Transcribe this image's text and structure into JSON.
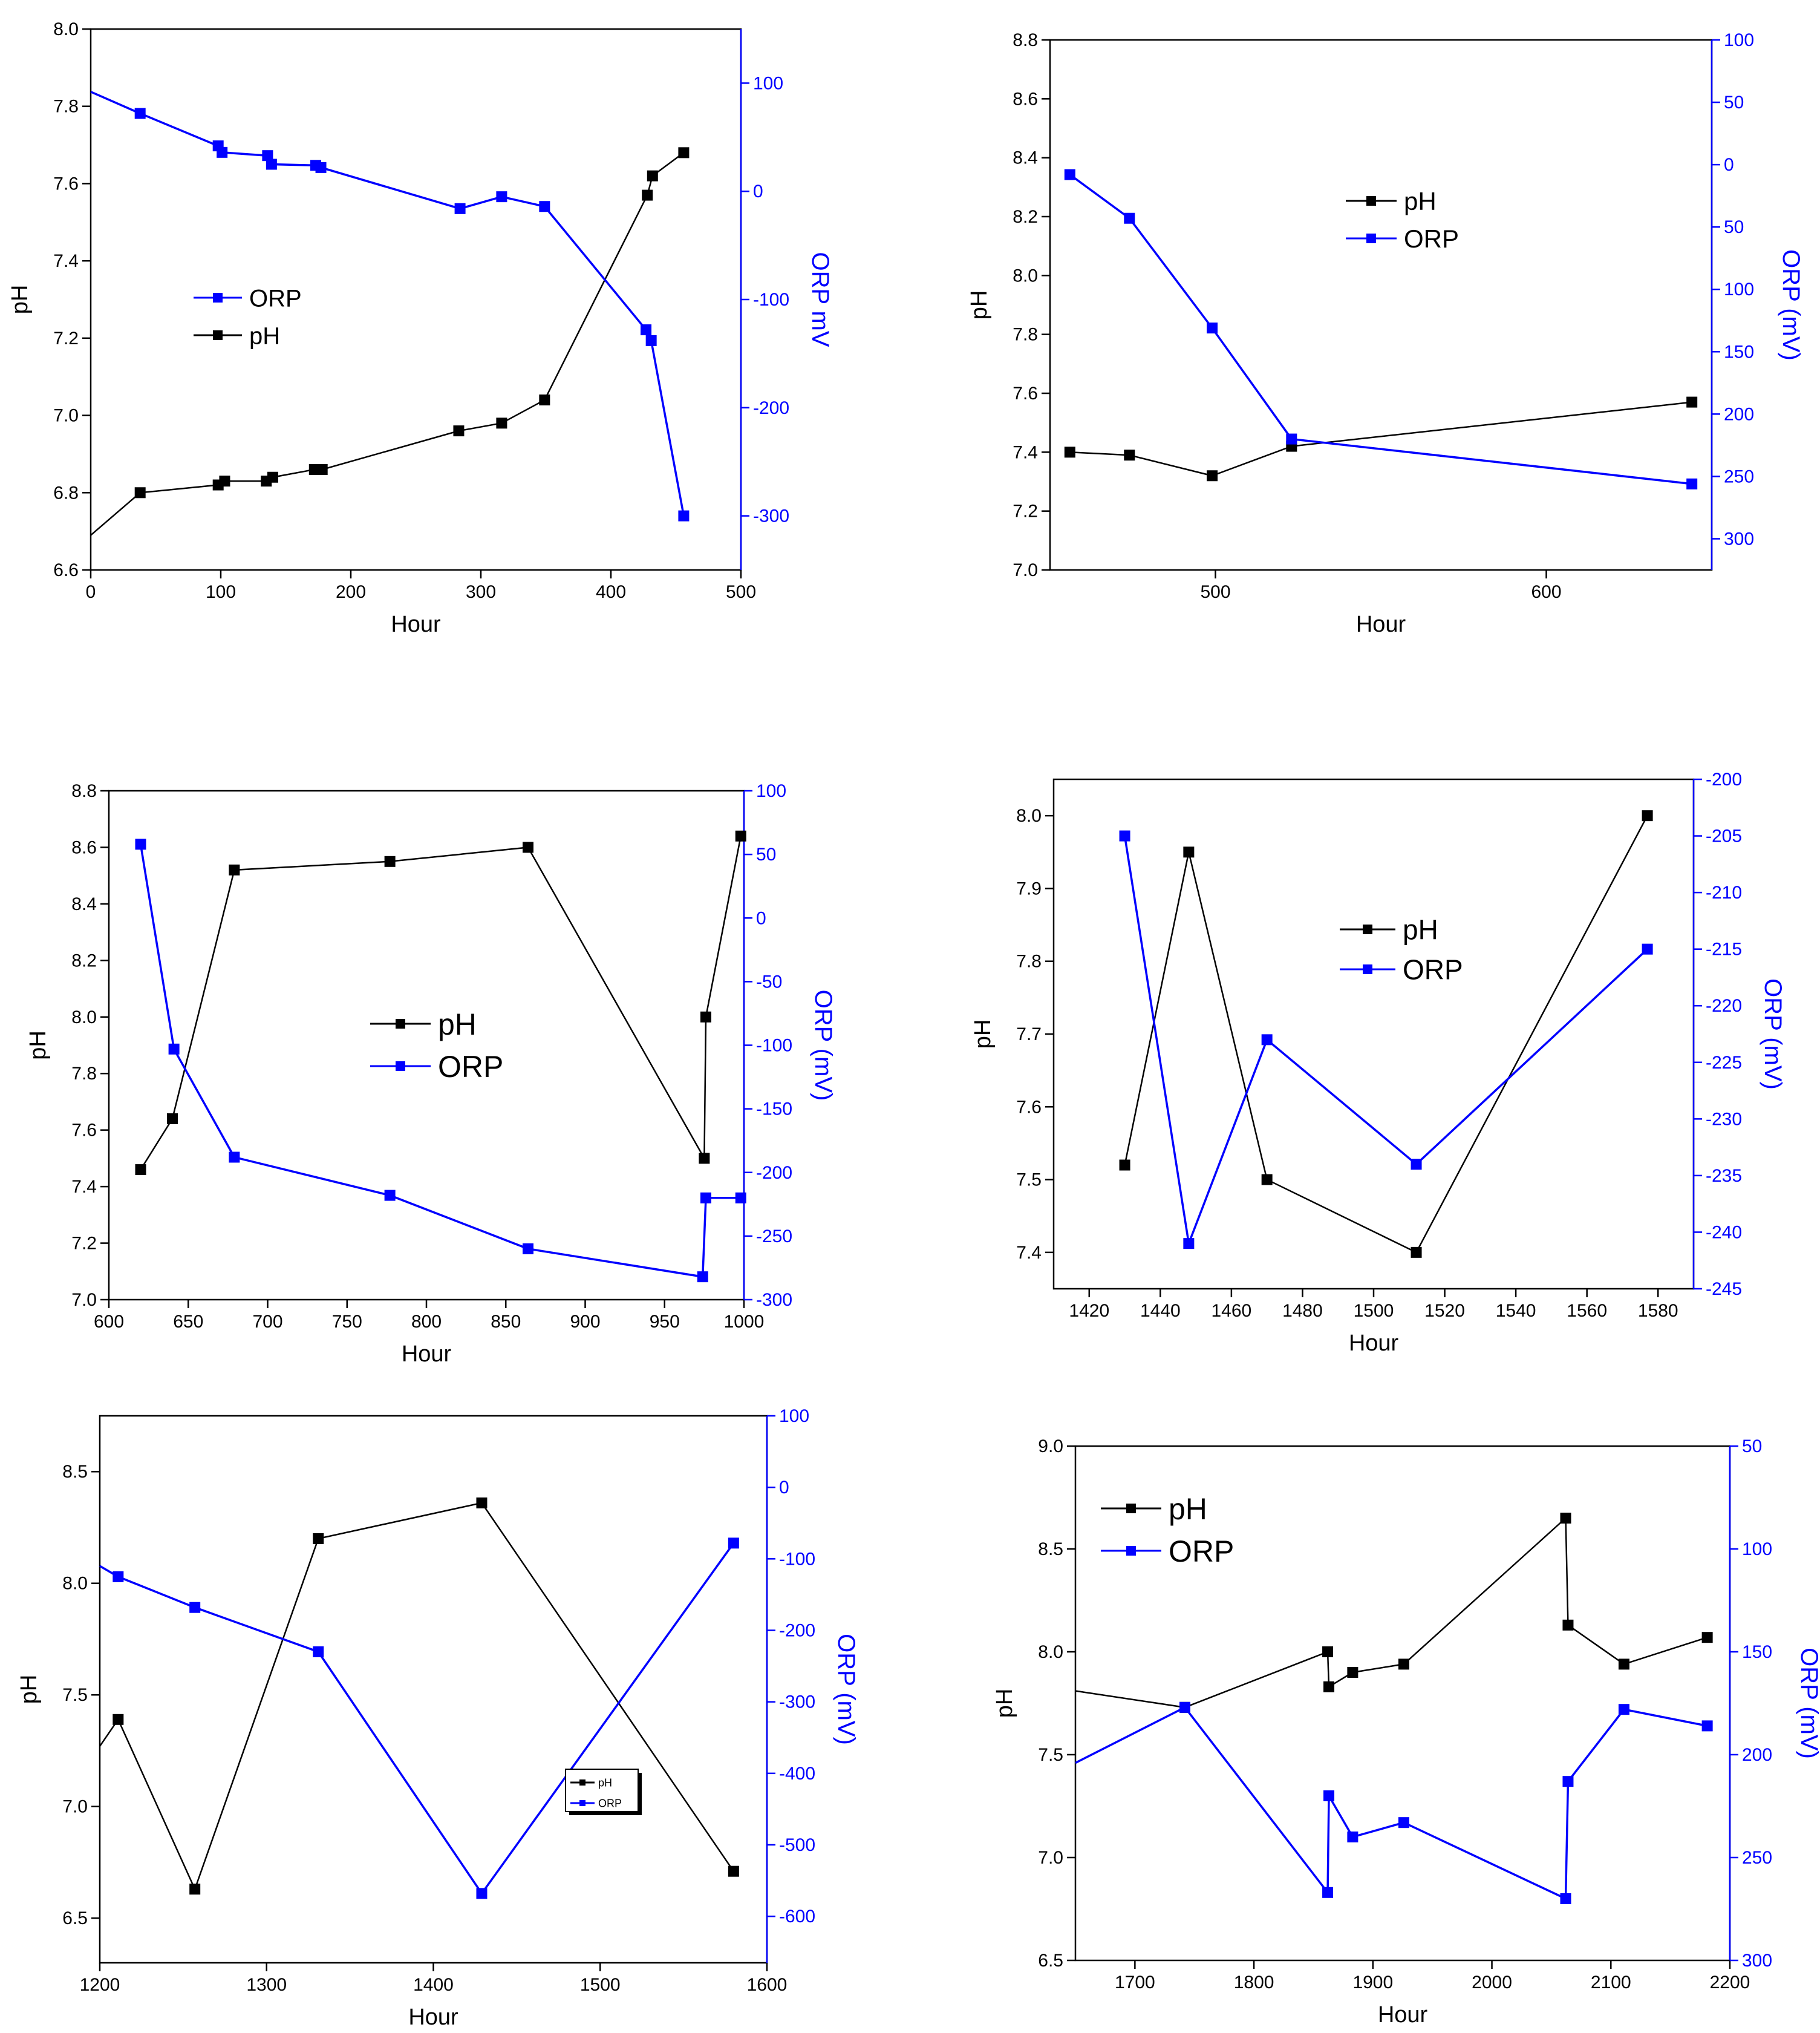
{
  "colors": {
    "primary": "#000000",
    "secondary": "#0000ff"
  },
  "chart_data": [
    {
      "type": "line",
      "xlabel": "Hour",
      "ylabel": "pH",
      "y2label": "ORP mV",
      "xlim": [
        0,
        500
      ],
      "ylim": [
        6.6,
        8.0
      ],
      "y2lim": [
        -350,
        150
      ],
      "xticks": [
        0,
        100,
        200,
        300,
        400,
        500
      ],
      "yticks": [
        6.6,
        6.8,
        7.0,
        7.2,
        7.4,
        7.6,
        7.8,
        8.0
      ],
      "y2ticks": [
        -300,
        -200,
        -100,
        0,
        100
      ],
      "legend": [
        "ORP",
        "pH"
      ],
      "series": [
        {
          "name": "pH",
          "axis": "left",
          "color": "#000000",
          "x": [
            0,
            38,
            98,
            103,
            135,
            140,
            172,
            178,
            283,
            316,
            349,
            428,
            432,
            456
          ],
          "y": [
            6.69,
            6.8,
            6.82,
            6.83,
            6.83,
            6.84,
            6.86,
            6.86,
            6.96,
            6.98,
            7.04,
            7.57,
            7.62,
            7.68
          ]
        },
        {
          "name": "ORP",
          "axis": "right",
          "color": "#0000ff",
          "x": [
            0,
            38,
            98,
            101,
            136,
            139,
            173,
            177,
            284,
            316,
            349,
            427,
            431,
            456
          ],
          "y": [
            92,
            72,
            42,
            36,
            33,
            25,
            24,
            22,
            -16,
            -5,
            -14,
            -128,
            -138,
            -300
          ]
        }
      ]
    },
    {
      "type": "line",
      "xlabel": "Hour",
      "ylabel": "pH",
      "y2label": "ORP (mV)",
      "xlim": [
        450,
        650
      ],
      "ylim": [
        7.0,
        8.8
      ],
      "y2lim": [
        -325,
        100
      ],
      "xticks": [
        500,
        600
      ],
      "yticks": [
        7.0,
        7.2,
        7.4,
        7.6,
        7.8,
        8.0,
        8.2,
        8.4,
        8.6,
        8.8
      ],
      "y2ticks": [
        -300,
        -250,
        -200,
        -150,
        -100,
        -50,
        0,
        50,
        100
      ],
      "y2ticklabels": [
        "300",
        "250",
        "200",
        "150",
        "100",
        "50",
        "0",
        "50",
        "100"
      ],
      "legend": [
        "pH",
        "ORP"
      ],
      "series": [
        {
          "name": "pH",
          "axis": "left",
          "color": "#000000",
          "x": [
            456,
            474,
            499,
            523,
            644
          ],
          "y": [
            7.4,
            7.39,
            7.32,
            7.42,
            7.57
          ]
        },
        {
          "name": "ORP",
          "axis": "right",
          "color": "#0000ff",
          "x": [
            456,
            474,
            499,
            523,
            644
          ],
          "y": [
            -8,
            -43,
            -131,
            -220,
            -256
          ]
        }
      ]
    },
    {
      "type": "line",
      "xlabel": "Hour",
      "ylabel": "pH",
      "y2label": "ORP (mV)",
      "xlim": [
        600,
        1000
      ],
      "ylim": [
        7.0,
        8.8
      ],
      "y2lim": [
        -300,
        100
      ],
      "xticks": [
        600,
        650,
        700,
        750,
        800,
        850,
        900,
        950,
        1000
      ],
      "yticks": [
        7.0,
        7.2,
        7.4,
        7.6,
        7.8,
        8.0,
        8.2,
        8.4,
        8.6,
        8.8
      ],
      "y2ticks": [
        -300,
        -250,
        -200,
        -150,
        -100,
        -50,
        0,
        50,
        100
      ],
      "legend": [
        "pH",
        "ORP"
      ],
      "series": [
        {
          "name": "pH",
          "axis": "left",
          "color": "#000000",
          "x": [
            620,
            640,
            679,
            777,
            864,
            975,
            976,
            998
          ],
          "y": [
            7.46,
            7.64,
            8.52,
            8.55,
            8.6,
            7.5,
            8.0,
            8.64
          ]
        },
        {
          "name": "ORP",
          "axis": "right",
          "color": "#0000ff",
          "x": [
            620,
            641,
            679,
            777,
            864,
            974,
            976,
            998
          ],
          "y": [
            58,
            -103,
            -188,
            -218,
            -260,
            -282,
            -220,
            -220
          ]
        }
      ]
    },
    {
      "type": "line",
      "xlabel": "Hour",
      "ylabel": "pH",
      "y2label": "ORP (mV)",
      "xlim": [
        1410,
        1590
      ],
      "ylim": [
        7.35,
        8.05
      ],
      "y2lim": [
        -245,
        -200
      ],
      "xticks": [
        1420,
        1440,
        1460,
        1480,
        1500,
        1520,
        1540,
        1560,
        1580
      ],
      "yticks": [
        7.4,
        7.5,
        7.6,
        7.7,
        7.8,
        7.9,
        8.0
      ],
      "y2ticks": [
        -245,
        -240,
        -235,
        -230,
        -225,
        -220,
        -215,
        -210,
        -205,
        -200
      ],
      "legend": [
        "pH",
        "ORP"
      ],
      "series": [
        {
          "name": "pH",
          "axis": "left",
          "color": "#000000",
          "x": [
            1430,
            1448,
            1470,
            1512,
            1577
          ],
          "y": [
            7.52,
            7.95,
            7.5,
            7.4,
            8.0
          ]
        },
        {
          "name": "ORP",
          "axis": "right",
          "color": "#0000ff",
          "x": [
            1430,
            1448,
            1470,
            1512,
            1577
          ],
          "y": [
            -205,
            -241,
            -223,
            -234,
            -215
          ]
        }
      ]
    },
    {
      "type": "line",
      "xlabel": "Hour",
      "ylabel": "pH",
      "y2label": "ORP (mV)",
      "xlim": [
        1200,
        1600
      ],
      "ylim": [
        6.3,
        8.75
      ],
      "y2lim": [
        -665,
        100
      ],
      "xticks": [
        1200,
        1300,
        1400,
        1500,
        1600
      ],
      "yticks": [
        6.5,
        7.0,
        7.5,
        8.0,
        8.5
      ],
      "y2ticks": [
        -600,
        -500,
        -400,
        -300,
        -200,
        -100,
        0,
        100
      ],
      "legend": [
        "pH",
        "ORP"
      ],
      "series": [
        {
          "name": "pH",
          "axis": "left",
          "color": "#000000",
          "x": [
            1200,
            1211,
            1257,
            1331,
            1429,
            1580
          ],
          "y": [
            7.27,
            7.39,
            6.63,
            8.2,
            8.36,
            6.71
          ]
        },
        {
          "name": "ORP",
          "axis": "right",
          "color": "#0000ff",
          "x": [
            1200,
            1211,
            1257,
            1331,
            1429,
            1580
          ],
          "y": [
            -110,
            -125,
            -168,
            -230,
            -568,
            -78
          ]
        }
      ]
    },
    {
      "type": "line",
      "xlabel": "Hour",
      "ylabel": "pH",
      "y2label": "ORP (mV)",
      "xlim": [
        1650,
        2200
      ],
      "ylim": [
        6.5,
        9.0
      ],
      "y2lim": [
        -300,
        -50
      ],
      "xticks": [
        1700,
        1800,
        1900,
        2000,
        2100,
        2200
      ],
      "yticks": [
        6.5,
        7.0,
        7.5,
        8.0,
        8.5,
        9.0
      ],
      "y2ticks": [
        -300,
        -250,
        -200,
        -150,
        -100,
        -50
      ],
      "y2ticklabels": [
        "300",
        "250",
        "200",
        "150",
        "100",
        "50"
      ],
      "legend": [
        "pH",
        "ORP"
      ],
      "series": [
        {
          "name": "pH",
          "axis": "left",
          "color": "#000000",
          "x": [
            1650,
            1742,
            1862,
            1863,
            1883,
            1926,
            2062,
            2064,
            2111,
            2181
          ],
          "y": [
            7.81,
            7.73,
            8.0,
            7.83,
            7.9,
            7.94,
            8.65,
            8.13,
            7.94,
            8.07
          ]
        },
        {
          "name": "ORP",
          "axis": "right",
          "color": "#0000ff",
          "x": [
            1650,
            1742,
            1862,
            1863,
            1883,
            1926,
            2062,
            2064,
            2111,
            2181
          ],
          "y": [
            -204,
            -177,
            -267,
            -220,
            -240,
            -233,
            -270,
            -213,
            -178,
            -186
          ]
        }
      ]
    }
  ]
}
